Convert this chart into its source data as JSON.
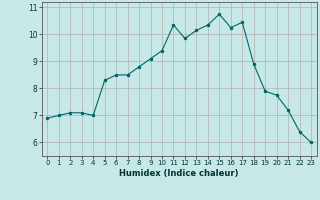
{
  "x": [
    0,
    1,
    2,
    3,
    4,
    5,
    6,
    7,
    8,
    9,
    10,
    11,
    12,
    13,
    14,
    15,
    16,
    17,
    18,
    19,
    20,
    21,
    22,
    23
  ],
  "y": [
    6.9,
    7.0,
    7.1,
    7.1,
    7.0,
    8.3,
    8.5,
    8.5,
    8.8,
    9.1,
    9.4,
    10.35,
    9.85,
    10.15,
    10.35,
    10.75,
    10.25,
    10.45,
    8.9,
    7.9,
    7.75,
    7.2,
    6.4,
    6.0
  ],
  "xlabel": "Humidex (Indice chaleur)",
  "bg_color": "#c8e8e8",
  "grid_color": "#b0b0b0",
  "line_color": "#006666",
  "marker_color": "#006666",
  "xlim": [
    -0.5,
    23.5
  ],
  "ylim": [
    5.5,
    11.2
  ],
  "yticks": [
    6,
    7,
    8,
    9,
    10,
    11
  ],
  "xticks": [
    0,
    1,
    2,
    3,
    4,
    5,
    6,
    7,
    8,
    9,
    10,
    11,
    12,
    13,
    14,
    15,
    16,
    17,
    18,
    19,
    20,
    21,
    22,
    23
  ]
}
